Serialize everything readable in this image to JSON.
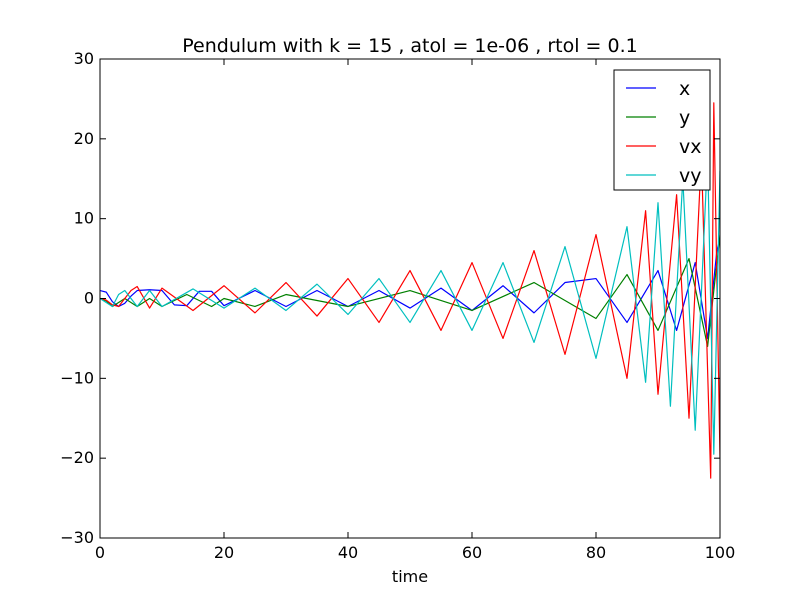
{
  "chart_data": {
    "type": "line",
    "title": "Pendulum with k = 15 , atol = 1e-06 , rtol = 0.1",
    "xlabel": "time",
    "ylabel": "",
    "xlim": [
      0,
      100
    ],
    "ylim": [
      -30,
      30
    ],
    "x_ticks": [
      0,
      20,
      40,
      60,
      80,
      100
    ],
    "y_ticks": [
      -30,
      -20,
      -10,
      0,
      10,
      20,
      30
    ],
    "x_tick_labels": [
      "0",
      "20",
      "40",
      "60",
      "80",
      "100"
    ],
    "y_tick_labels": [
      "−30",
      "−20",
      "−10",
      "0",
      "10",
      "20",
      "30"
    ],
    "grid": false,
    "legend_position": "top-right",
    "series": [
      {
        "name": "x",
        "color": "#0000ff",
        "x": [
          0,
          1,
          2,
          3,
          4,
          5,
          6,
          8,
          10,
          12,
          14,
          16,
          18,
          20,
          25,
          30,
          35,
          40,
          45,
          50,
          55,
          60,
          65,
          70,
          75,
          80,
          85,
          90,
          93,
          96,
          98,
          99.5,
          100
        ],
        "y": [
          1.0,
          0.8,
          -0.4,
          -1.0,
          -0.6,
          0.3,
          1.0,
          1.1,
          1.0,
          -0.8,
          -0.9,
          0.9,
          0.9,
          -0.9,
          1.0,
          -1.0,
          1.0,
          -1.0,
          1.0,
          -1.2,
          1.3,
          -1.5,
          1.6,
          -1.8,
          2.0,
          2.5,
          -3.0,
          3.5,
          -4.0,
          4.5,
          -5.0,
          6.0,
          7.5
        ]
      },
      {
        "name": "y",
        "color": "#008000",
        "x": [
          0,
          1,
          2,
          3,
          4,
          6,
          8,
          10,
          14,
          18,
          20,
          25,
          30,
          40,
          50,
          60,
          70,
          80,
          85,
          90,
          95,
          98,
          100
        ],
        "y": [
          0.0,
          -0.3,
          -1.0,
          -0.5,
          0.0,
          -1.0,
          0.0,
          -1.0,
          0.5,
          -1.0,
          0.0,
          -1.0,
          0.5,
          -1.0,
          1.0,
          -1.5,
          2.0,
          -2.5,
          3.0,
          -4.0,
          5.0,
          -6.0,
          8.0
        ]
      },
      {
        "name": "vx",
        "color": "#ff0000",
        "x": [
          0,
          1,
          2,
          3,
          4,
          5,
          6,
          8,
          10,
          15,
          20,
          25,
          30,
          35,
          40,
          45,
          50,
          55,
          60,
          65,
          70,
          75,
          80,
          85,
          88,
          90,
          93,
          95,
          97,
          98.5,
          99,
          100
        ],
        "y": [
          0.0,
          -0.2,
          -0.8,
          -1.0,
          0.0,
          1.0,
          1.5,
          -1.2,
          1.3,
          -1.5,
          1.6,
          -1.8,
          2.0,
          -2.2,
          2.5,
          -3.0,
          3.5,
          -4.0,
          4.5,
          -5.0,
          6.0,
          -7.0,
          8.0,
          -10.0,
          11.0,
          -12.0,
          13.0,
          -15.0,
          18.0,
          -22.5,
          24.5,
          -20.0
        ]
      },
      {
        "name": "vy",
        "color": "#00bfbf",
        "x": [
          0,
          1,
          2,
          3,
          4,
          6,
          8,
          10,
          15,
          20,
          25,
          30,
          35,
          40,
          45,
          50,
          55,
          60,
          65,
          70,
          75,
          80,
          85,
          88,
          90,
          92,
          94,
          96,
          98,
          99,
          100
        ],
        "y": [
          0.0,
          -0.5,
          -1.0,
          0.5,
          1.0,
          -1.0,
          1.0,
          -1.0,
          1.2,
          -1.2,
          1.3,
          -1.5,
          1.8,
          -2.0,
          2.5,
          -3.0,
          3.5,
          -4.0,
          4.5,
          -5.5,
          6.5,
          -7.5,
          9.0,
          -10.5,
          12.0,
          -13.5,
          15.0,
          -16.5,
          18.0,
          -19.5,
          16.0
        ]
      }
    ]
  }
}
